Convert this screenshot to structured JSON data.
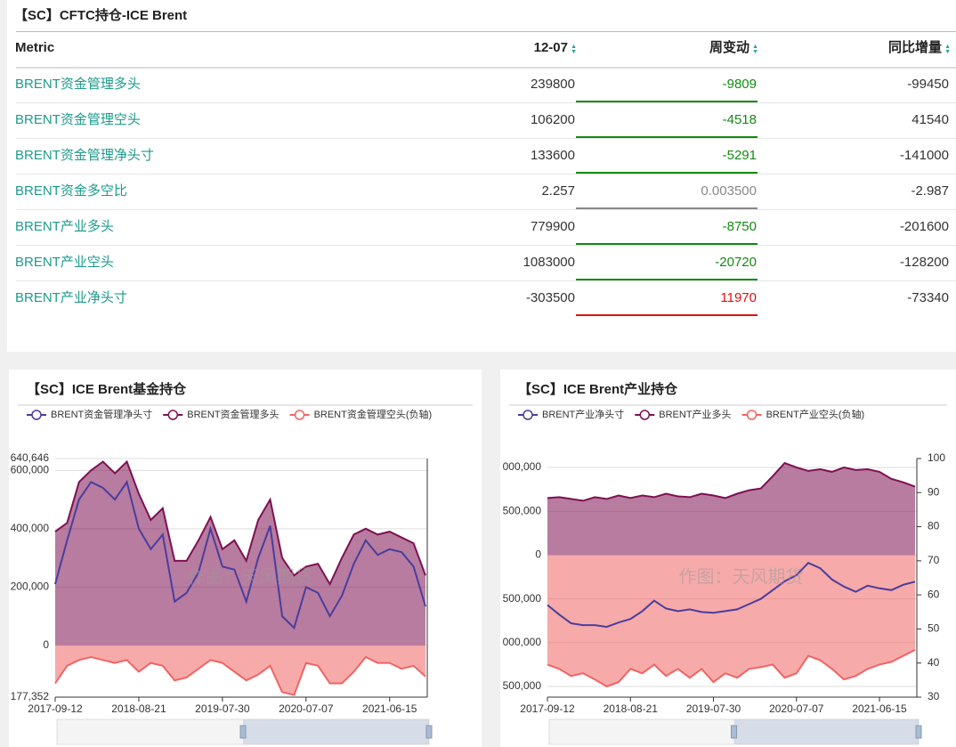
{
  "table": {
    "title": "【SC】CFTC持仓-ICE Brent",
    "headers": [
      "Metric",
      "12-07",
      "周变动",
      "同比增量"
    ],
    "rows": [
      [
        "BRENT资金管理多头",
        "239800",
        "-9809",
        "-99450"
      ],
      [
        "BRENT资金管理空头",
        "106200",
        "-4518",
        "41540"
      ],
      [
        "BRENT资金管理净头寸",
        "133600",
        "-5291",
        "-141000"
      ],
      [
        "BRENT资金多空比",
        "2.257",
        "0.003500",
        "-2.987"
      ],
      [
        "BRENT产业多头",
        "779900",
        "-8750",
        "-201600"
      ],
      [
        "BRENT产业空头",
        "1083000",
        "-20720",
        "-128200"
      ],
      [
        "BRENT产业净头寸",
        "-303500",
        "11970",
        "-73340"
      ]
    ],
    "change_colors": [
      "#138a13",
      "#138a13",
      "#138a13",
      "#888888",
      "#138a13",
      "#138a13",
      "#e01010"
    ]
  },
  "watermark": "作图：天风期货",
  "charts": [
    {
      "type": "area",
      "title": "【SC】ICE Brent基金持仓",
      "categories": [
        "2017-09-12",
        null,
        null,
        null,
        null,
        null,
        null,
        "2018-08-21",
        null,
        null,
        null,
        null,
        null,
        null,
        "2019-07-30",
        null,
        null,
        null,
        null,
        null,
        null,
        "2020-07-07",
        null,
        null,
        null,
        null,
        null,
        null,
        "2021-06-15",
        null,
        null,
        null
      ],
      "ylim": [
        -177352,
        640646
      ],
      "yticks": [
        {
          "value": -177352,
          "label": "177,352"
        },
        0,
        {
          "value": 200000,
          "label": "200,000"
        },
        {
          "value": 400000,
          "label": "400,000"
        },
        {
          "value": 600000,
          "label": "600,000"
        },
        {
          "value": 640646,
          "label": "640,646"
        }
      ],
      "grid": true,
      "series": [
        {
          "name": "BRENT资金管理净头寸",
          "color": "#4a3d9c",
          "style": "line",
          "values": [
            210000,
            360000,
            500000,
            560000,
            540000,
            500000,
            560000,
            400000,
            330000,
            380000,
            150000,
            180000,
            250000,
            400000,
            270000,
            260000,
            150000,
            300000,
            410000,
            100000,
            60000,
            200000,
            180000,
            100000,
            170000,
            280000,
            360000,
            310000,
            330000,
            320000,
            270000,
            133600
          ]
        },
        {
          "name": "BRENT资金管理多头",
          "color": "#7d1152",
          "style": "area",
          "values": [
            390000,
            420000,
            560000,
            600000,
            630000,
            590000,
            630000,
            520000,
            430000,
            470000,
            290000,
            290000,
            360000,
            440000,
            330000,
            360000,
            290000,
            430000,
            500000,
            300000,
            240000,
            270000,
            280000,
            210000,
            300000,
            380000,
            400000,
            380000,
            390000,
            370000,
            350000,
            239800
          ]
        },
        {
          "name": "BRENT资金管理空头(负轴)",
          "color": "#f06464",
          "style": "area",
          "values": [
            -130000,
            -70000,
            -50000,
            -40000,
            -50000,
            -60000,
            -50000,
            -90000,
            -60000,
            -70000,
            -120000,
            -110000,
            -80000,
            -50000,
            -60000,
            -90000,
            -120000,
            -100000,
            -70000,
            -160000,
            -170000,
            -60000,
            -70000,
            -130000,
            -130000,
            -90000,
            -40000,
            -60000,
            -60000,
            -80000,
            -70000,
            -106200
          ]
        }
      ]
    },
    {
      "type": "area",
      "title": "【SC】ICE Brent产业持仓",
      "categories": [
        "2017-09-12",
        null,
        null,
        null,
        null,
        null,
        null,
        "2018-08-21",
        null,
        null,
        null,
        null,
        null,
        null,
        "2019-07-30",
        null,
        null,
        null,
        null,
        null,
        null,
        "2020-07-07",
        null,
        null,
        null,
        null,
        null,
        null,
        "2021-06-15",
        null,
        null,
        null
      ],
      "ylim": [
        -1622000,
        1101500
      ],
      "yticks": [
        {
          "value": -1500000,
          "label": "500,000"
        },
        {
          "value": -1000000,
          "label": "000,000"
        },
        {
          "value": -500000,
          "label": "500,000"
        },
        0,
        {
          "value": 500000,
          "label": "500,000"
        },
        {
          "value": 1000000,
          "label": "000,000"
        }
      ],
      "y2lim": [
        30,
        100
      ],
      "y2ticks": [
        30,
        40,
        50,
        60,
        70,
        80,
        90,
        100
      ],
      "grid": true,
      "series": [
        {
          "name": "BRENT产业净头寸",
          "color": "#4a3d9c",
          "style": "line",
          "values": [
            -570000,
            -680000,
            -780000,
            -800000,
            -800000,
            -820000,
            -770000,
            -730000,
            -640000,
            -520000,
            -610000,
            -640000,
            -620000,
            -650000,
            -660000,
            -640000,
            -620000,
            -560000,
            -500000,
            -400000,
            -300000,
            -230000,
            -90000,
            -150000,
            -280000,
            -360000,
            -420000,
            -350000,
            -380000,
            -400000,
            -340000,
            -303500
          ]
        },
        {
          "name": "BRENT产业多头",
          "color": "#7d1152",
          "style": "area",
          "values": [
            650000,
            660000,
            640000,
            620000,
            660000,
            640000,
            680000,
            650000,
            680000,
            660000,
            700000,
            670000,
            660000,
            700000,
            680000,
            650000,
            700000,
            740000,
            760000,
            900000,
            1050000,
            1000000,
            960000,
            980000,
            950000,
            1000000,
            970000,
            980000,
            950000,
            870000,
            830000,
            779900
          ]
        },
        {
          "name": "BRENT产业空头(负轴)",
          "color": "#f06464",
          "style": "area",
          "values": [
            -1250000,
            -1300000,
            -1380000,
            -1350000,
            -1420000,
            -1500000,
            -1450000,
            -1300000,
            -1350000,
            -1250000,
            -1380000,
            -1300000,
            -1400000,
            -1300000,
            -1450000,
            -1350000,
            -1400000,
            -1300000,
            -1280000,
            -1250000,
            -1400000,
            -1350000,
            -1150000,
            -1200000,
            -1300000,
            -1420000,
            -1380000,
            -1300000,
            -1250000,
            -1220000,
            -1150000,
            -1083000
          ]
        }
      ]
    }
  ]
}
